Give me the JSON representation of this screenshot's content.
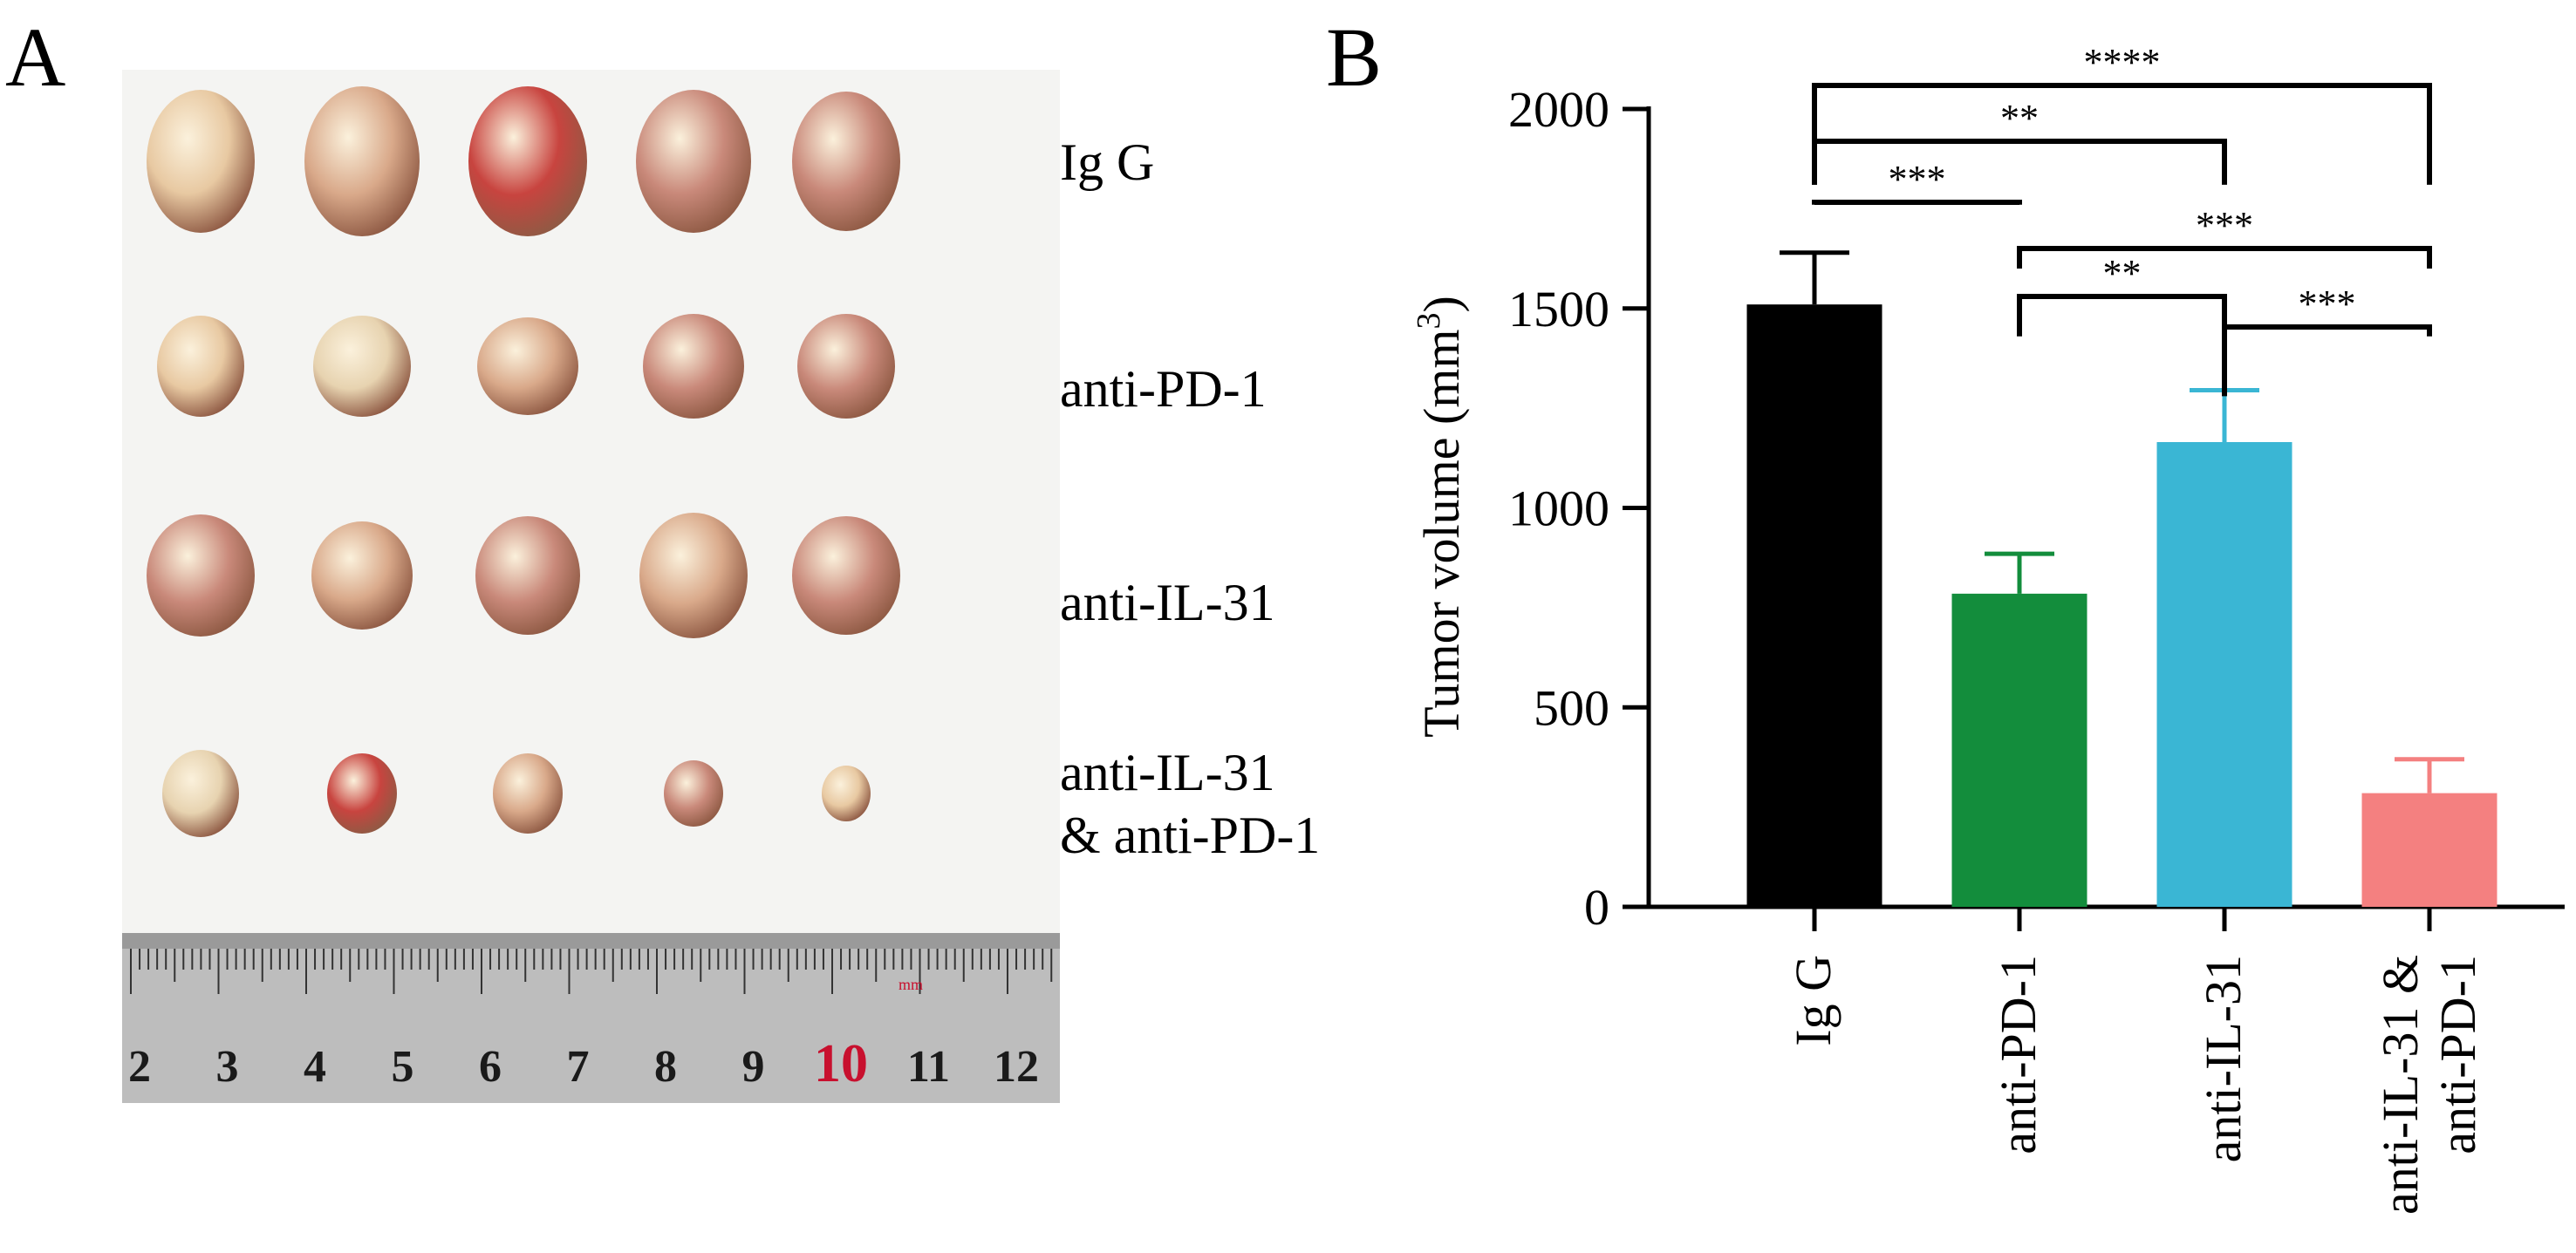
{
  "panel_a": {
    "letter": "A",
    "row_labels": [
      "Ig G",
      "anti-PD-1",
      "anti-IL-31",
      "anti-IL-31\n& anti-PD-1"
    ],
    "ruler": {
      "numbers": [
        "2",
        "3",
        "4",
        "5",
        "6",
        "7",
        "8",
        "9",
        "10",
        "11",
        "12"
      ],
      "unit": "mm",
      "highlight_number": "10",
      "highlight_color": "#c8102e"
    },
    "background_color": "#f4f4f2",
    "tumor_colors": [
      "#e8c9a2",
      "#d9a98a",
      "#c9897a",
      "#e7d3b0",
      "#c8443f"
    ]
  },
  "panel_b": {
    "letter": "B",
    "chart_data": {
      "type": "bar",
      "title": "",
      "xlabel": "",
      "ylabel": "Tumor volume (mm³)",
      "ylabel_main": "Tumor volume (mm",
      "ylabel_sup": "3",
      "ylabel_close": ")",
      "ylim": [
        0,
        2000
      ],
      "yticks": [
        0,
        500,
        1000,
        1500,
        2000
      ],
      "ytick_labels": [
        "0",
        "500",
        "1000",
        "1500",
        "2000"
      ],
      "categories": [
        "Ig G",
        "anti-PD-1",
        "anti-IL-31",
        "anti-IL-31 &\nanti-PD-1"
      ],
      "values": [
        1510,
        785,
        1165,
        285
      ],
      "errors": [
        130,
        100,
        130,
        85
      ],
      "colors": [
        "#000000",
        "#138d3c",
        "#3ab6d4",
        "#f48080"
      ],
      "grid": false,
      "significance": [
        {
          "from": 0,
          "to": 3,
          "label": "****"
        },
        {
          "from": 0,
          "to": 2,
          "label": "**"
        },
        {
          "from": 0,
          "to": 1,
          "label": "***"
        },
        {
          "from": 1,
          "to": 3,
          "label": "***"
        },
        {
          "from": 1,
          "to": 2,
          "label": "**"
        },
        {
          "from": 2,
          "to": 3,
          "label": "***"
        }
      ]
    }
  }
}
